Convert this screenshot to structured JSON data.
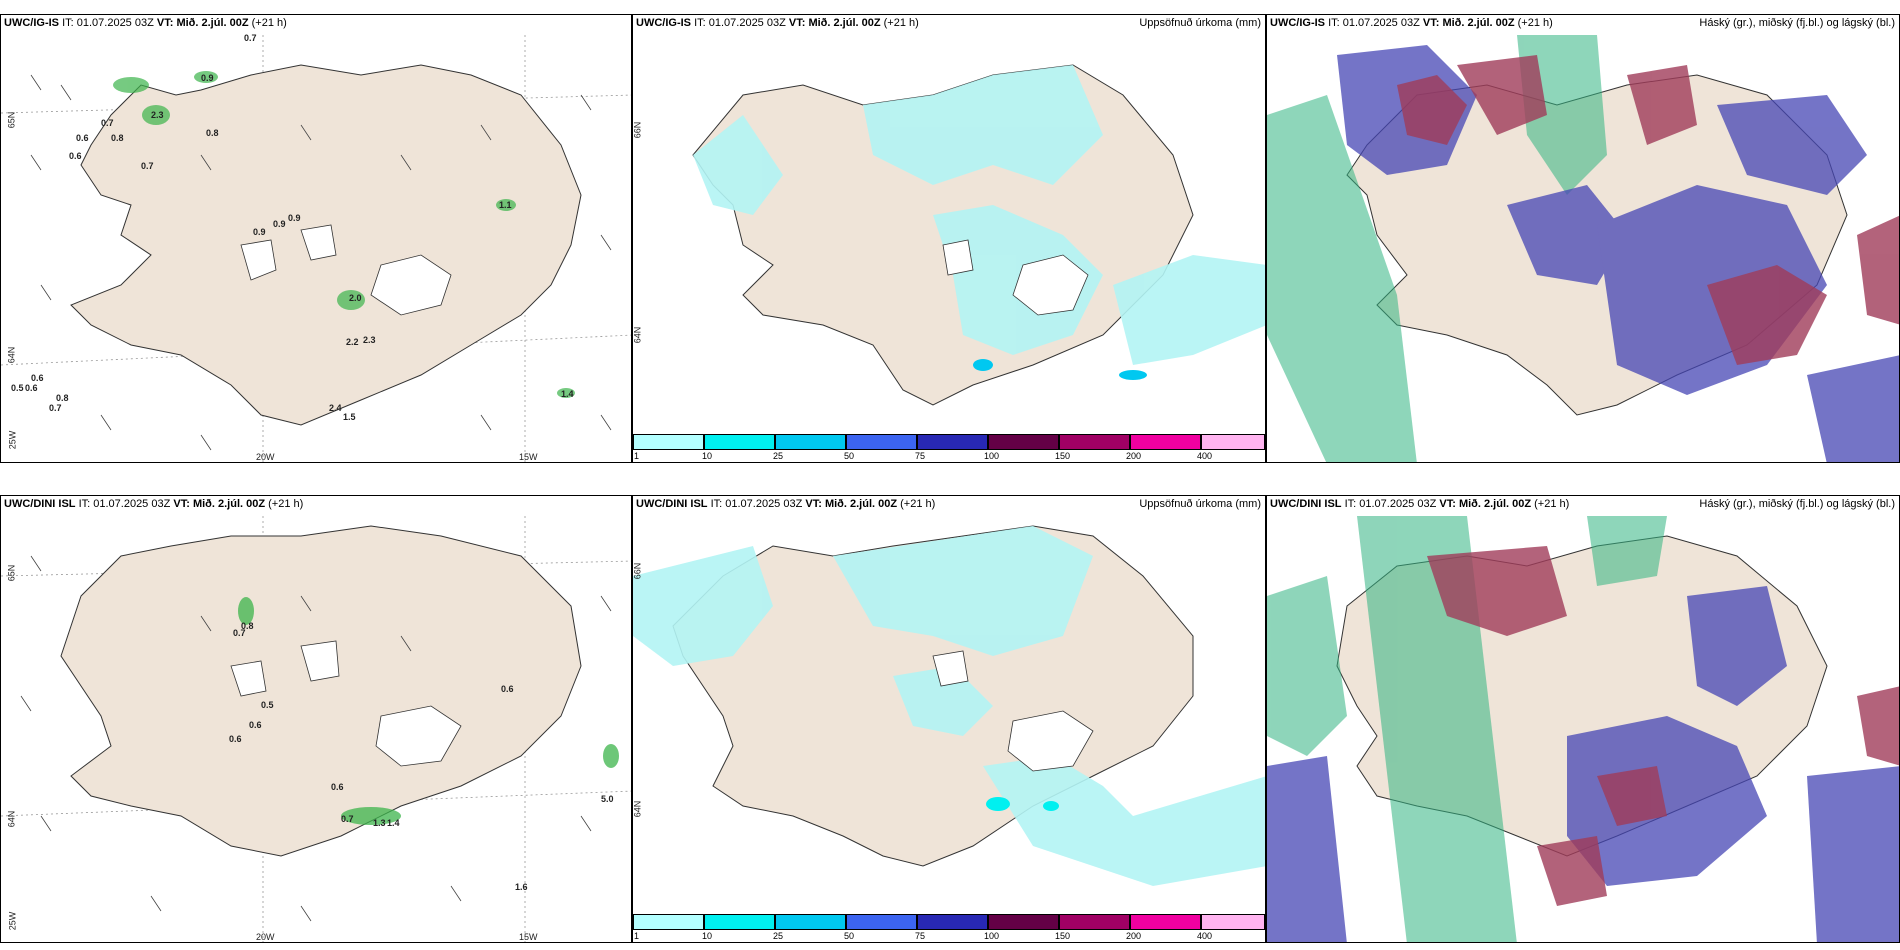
{
  "row_top": {
    "panel1": {
      "model": "UWC/IG-IS",
      "it_label": "IT:",
      "it": "01.07.2025 03Z",
      "vt_label": "VT:",
      "vt": "Mið. 2.júl. 00Z",
      "lead": "(+21 h)",
      "grid_labels": {
        "lat_top": "65N",
        "lat_mid": "64N",
        "lat_bot": "25W",
        "lon1": "20W",
        "lon2": "15W"
      },
      "values": [
        "0.7",
        "0.9",
        "2.3",
        "0.8",
        "0.6",
        "0.8",
        "0.7",
        "0.6",
        "0.7",
        "0.9",
        "0.9",
        "0.9",
        "1.1",
        "2.0",
        "2.2",
        "2.3",
        "0.5",
        "0.6",
        "0.6",
        "0.8",
        "0.7",
        "2.4",
        "1.5",
        "1.4"
      ]
    },
    "panel2": {
      "model": "UWC/IG-IS",
      "it_label": "IT:",
      "it": "01.07.2025 03Z",
      "vt_label": "VT:",
      "vt": "Mið. 2.júl. 00Z",
      "lead": "(+21 h)",
      "title_right": "Uppsöfnuð úrkoma (mm)",
      "lat_top": "66N",
      "lat_mid": "64N"
    },
    "panel3": {
      "model": "UWC/IG-IS",
      "it_label": "IT:",
      "it": "01.07.2025 03Z",
      "vt_label": "VT:",
      "vt": "Mið. 2.júl. 00Z",
      "lead": "(+21 h)",
      "title_right": "Háský (gr.), miðský (fj.bl.) og lágský (bl.)"
    }
  },
  "row_bottom": {
    "panel1": {
      "model": "UWC/DINI ISL",
      "it_label": "IT:",
      "it": "01.07.2025 03Z",
      "vt_label": "VT:",
      "vt": "Mið. 2.júl. 00Z",
      "lead": "(+21 h)",
      "grid_labels": {
        "lat_top": "65N",
        "lat_mid": "64N",
        "lat_bot": "25W",
        "lon1": "20W",
        "lon2": "15W"
      },
      "values": [
        "0.8",
        "0.7",
        "0.5",
        "0.6",
        "0.6",
        "0.6",
        "0.6",
        "0.7",
        "1.3",
        "1.4",
        "5.0",
        "1.6"
      ]
    },
    "panel2": {
      "model": "UWC/DINI ISL",
      "it_label": "IT:",
      "it": "01.07.2025 03Z",
      "vt_label": "VT:",
      "vt": "Mið. 2.júl. 00Z",
      "lead": "(+21 h)",
      "title_right": "Uppsöfnuð úrkoma (mm)",
      "lat_top": "66N",
      "lat_mid": "64N"
    },
    "panel3": {
      "model": "UWC/DINI ISL",
      "it_label": "IT:",
      "it": "01.07.2025 03Z",
      "vt_label": "VT:",
      "vt": "Mið. 2.júl. 00Z",
      "lead": "(+21 h)",
      "title_right": "Háský (gr.), miðský (fj.bl.) og lágský (bl.)"
    }
  },
  "colorbar": {
    "labels": [
      "1",
      "10",
      "25",
      "50",
      "75",
      "100",
      "150",
      "200",
      "400"
    ],
    "colors": [
      "#b3ffff",
      "#00f0f0",
      "#00c8f0",
      "#3c64f0",
      "#2828b4",
      "#640046",
      "#a00064",
      "#f000a0",
      "#ffb4f0"
    ]
  },
  "colors": {
    "land": "#efe4d8",
    "sea": "#ffffff",
    "precip_light": "#b3f4f4",
    "precip_green": "#3cb44b",
    "high_cloud": "#8a8a8a",
    "mid_cloud": "#a03c5a",
    "low_cloud": "#4646b4",
    "green_cloud": "#32b482"
  }
}
